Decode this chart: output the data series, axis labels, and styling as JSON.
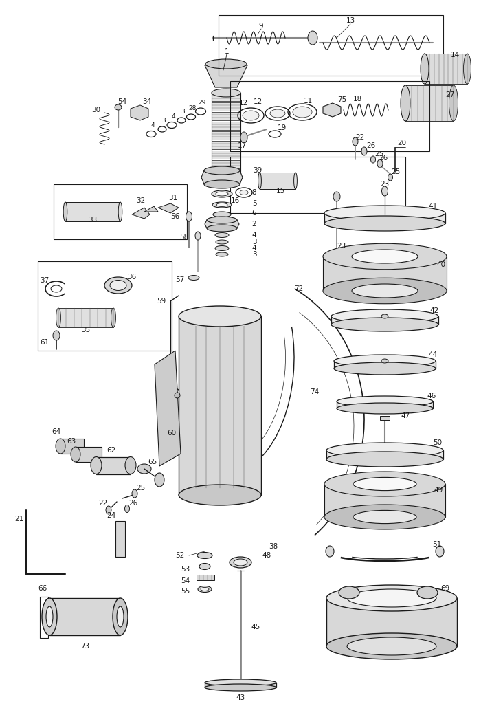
{
  "bg_color": "#ffffff",
  "lc": "#1a1a1a",
  "lc_mid": "#555555",
  "lc_light": "#888888",
  "fig_width": 7.0,
  "fig_height": 10.4,
  "dpi": 100,
  "fs": 7.5,
  "fs_small": 6.5
}
